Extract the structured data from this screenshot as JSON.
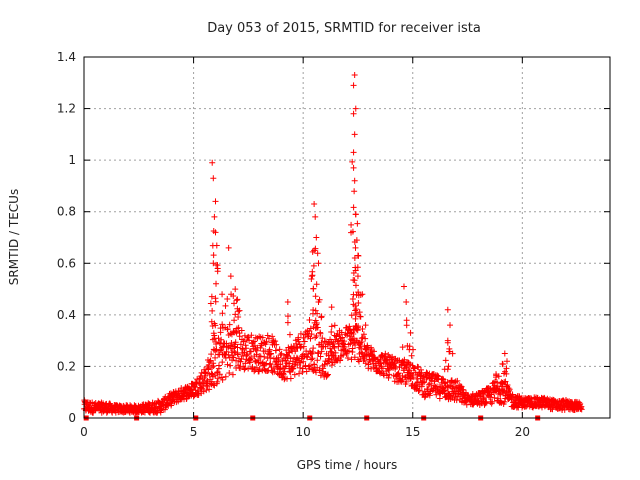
{
  "chart_data": {
    "type": "scatter",
    "title": "Day 053 of 2015, SRMTID for receiver ista",
    "xlabel": "GPS time / hours",
    "ylabel": "SRMTID / TECUs",
    "xlim": [
      0,
      24
    ],
    "ylim": [
      0,
      1.4
    ],
    "xticks": [
      0,
      5,
      10,
      15,
      20
    ],
    "xtick_labels": [
      "0",
      "5",
      "10",
      "15",
      "20"
    ],
    "yticks": [
      0,
      0.2,
      0.4,
      0.6,
      0.8,
      1.0,
      1.2,
      1.4
    ],
    "ytick_labels": [
      "0",
      "0.2",
      "0.4",
      "0.6",
      "0.8",
      "1",
      "1.2",
      "1.4"
    ],
    "grid": true,
    "marker": "plus",
    "color": "#ff0000",
    "x_range": [
      0,
      22.7
    ],
    "envelope": [
      [
        0.0,
        0.02,
        0.07
      ],
      [
        0.5,
        0.02,
        0.06
      ],
      [
        1.0,
        0.02,
        0.06
      ],
      [
        1.5,
        0.02,
        0.05
      ],
      [
        2.0,
        0.02,
        0.05
      ],
      [
        2.5,
        0.02,
        0.05
      ],
      [
        3.0,
        0.02,
        0.06
      ],
      [
        3.5,
        0.02,
        0.07
      ],
      [
        4.0,
        0.05,
        0.1
      ],
      [
        4.5,
        0.07,
        0.12
      ],
      [
        5.0,
        0.08,
        0.14
      ],
      [
        5.5,
        0.1,
        0.2
      ],
      [
        6.0,
        0.12,
        0.3
      ],
      [
        6.5,
        0.15,
        0.38
      ],
      [
        7.0,
        0.18,
        0.36
      ],
      [
        7.5,
        0.18,
        0.33
      ],
      [
        8.0,
        0.18,
        0.32
      ],
      [
        8.5,
        0.18,
        0.33
      ],
      [
        9.0,
        0.15,
        0.26
      ],
      [
        9.5,
        0.15,
        0.3
      ],
      [
        10.0,
        0.18,
        0.35
      ],
      [
        10.5,
        0.18,
        0.38
      ],
      [
        11.0,
        0.15,
        0.3
      ],
      [
        11.5,
        0.22,
        0.33
      ],
      [
        12.0,
        0.22,
        0.36
      ],
      [
        12.5,
        0.22,
        0.38
      ],
      [
        13.0,
        0.18,
        0.28
      ],
      [
        13.5,
        0.17,
        0.26
      ],
      [
        14.0,
        0.15,
        0.24
      ],
      [
        14.5,
        0.13,
        0.22
      ],
      [
        15.0,
        0.12,
        0.22
      ],
      [
        15.5,
        0.08,
        0.18
      ],
      [
        16.0,
        0.08,
        0.17
      ],
      [
        16.5,
        0.07,
        0.16
      ],
      [
        17.0,
        0.06,
        0.15
      ],
      [
        17.5,
        0.05,
        0.09
      ],
      [
        18.0,
        0.05,
        0.1
      ],
      [
        18.5,
        0.05,
        0.12
      ],
      [
        19.0,
        0.06,
        0.18
      ],
      [
        19.5,
        0.04,
        0.1
      ],
      [
        20.0,
        0.04,
        0.08
      ],
      [
        20.5,
        0.04,
        0.08
      ],
      [
        21.0,
        0.04,
        0.08
      ],
      [
        21.5,
        0.03,
        0.07
      ],
      [
        22.0,
        0.03,
        0.07
      ],
      [
        22.7,
        0.03,
        0.06
      ]
    ],
    "peaks": [
      {
        "x": 5.85,
        "y": 0.99
      },
      {
        "x": 5.9,
        "y": 0.93
      },
      {
        "x": 6.0,
        "y": 0.84
      },
      {
        "x": 5.95,
        "y": 0.78
      },
      {
        "x": 6.0,
        "y": 0.72
      },
      {
        "x": 5.9,
        "y": 0.6
      },
      {
        "x": 6.1,
        "y": 0.58
      },
      {
        "x": 6.6,
        "y": 0.66
      },
      {
        "x": 6.7,
        "y": 0.55
      },
      {
        "x": 6.9,
        "y": 0.5
      },
      {
        "x": 7.0,
        "y": 0.46
      },
      {
        "x": 6.3,
        "y": 0.48
      },
      {
        "x": 10.5,
        "y": 0.83
      },
      {
        "x": 10.55,
        "y": 0.78
      },
      {
        "x": 10.6,
        "y": 0.7
      },
      {
        "x": 10.5,
        "y": 0.65
      },
      {
        "x": 10.7,
        "y": 0.6
      },
      {
        "x": 10.4,
        "y": 0.55
      },
      {
        "x": 10.7,
        "y": 0.45
      },
      {
        "x": 9.3,
        "y": 0.45
      },
      {
        "x": 12.35,
        "y": 1.33
      },
      {
        "x": 12.3,
        "y": 1.29
      },
      {
        "x": 12.4,
        "y": 1.2
      },
      {
        "x": 12.3,
        "y": 1.18
      },
      {
        "x": 12.35,
        "y": 1.1
      },
      {
        "x": 12.3,
        "y": 1.03
      },
      {
        "x": 12.3,
        "y": 0.97
      },
      {
        "x": 12.35,
        "y": 0.92
      },
      {
        "x": 12.4,
        "y": 0.79
      },
      {
        "x": 12.45,
        "y": 0.69
      },
      {
        "x": 12.5,
        "y": 0.63
      },
      {
        "x": 12.5,
        "y": 0.55
      },
      {
        "x": 12.7,
        "y": 0.48
      },
      {
        "x": 11.3,
        "y": 0.43
      },
      {
        "x": 14.6,
        "y": 0.51
      },
      {
        "x": 14.7,
        "y": 0.45
      },
      {
        "x": 14.9,
        "y": 0.33
      },
      {
        "x": 16.6,
        "y": 0.42
      },
      {
        "x": 16.7,
        "y": 0.36
      },
      {
        "x": 16.6,
        "y": 0.3
      },
      {
        "x": 19.2,
        "y": 0.25
      },
      {
        "x": 19.3,
        "y": 0.22
      },
      {
        "x": 18.8,
        "y": 0.17
      }
    ],
    "markers_at_zero": [
      0.1,
      2.4,
      5.1,
      7.7,
      10.3,
      12.9,
      15.5,
      18.1,
      20.7
    ]
  }
}
